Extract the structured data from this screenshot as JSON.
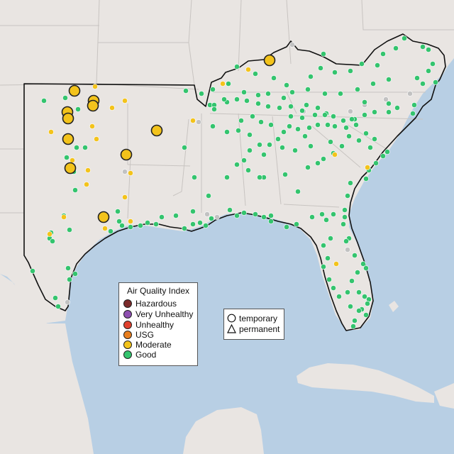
{
  "map": {
    "colors": {
      "water": "#b8cfe4",
      "land": "#e9e5e2",
      "state_line": "#c8c4c1",
      "region_outline": "#111111",
      "marker_stroke": "#ffffff",
      "large_marker_stroke": "#222222"
    }
  },
  "legend_aqi": {
    "title": "Air Quality Index",
    "items": [
      {
        "label": "Hazardous",
        "color": "#7b2a2a"
      },
      {
        "label": "Very Unhealthy",
        "color": "#8e4fb0"
      },
      {
        "label": "Unhealthy",
        "color": "#e0412e"
      },
      {
        "label": "USG",
        "color": "#e87e1e"
      },
      {
        "label": "Moderate",
        "color": "#f3c31b"
      },
      {
        "label": "Good",
        "color": "#34c46e"
      }
    ]
  },
  "legend_monitor_type": {
    "items": [
      {
        "label": "temporary",
        "icon": "circle-icon"
      },
      {
        "label": "permanent",
        "icon": "triangle-icon"
      }
    ]
  },
  "monitor_classes": {
    "good": "#34c46e",
    "moderate": "#f3c31b",
    "no_data": "#c2c2c2"
  }
}
